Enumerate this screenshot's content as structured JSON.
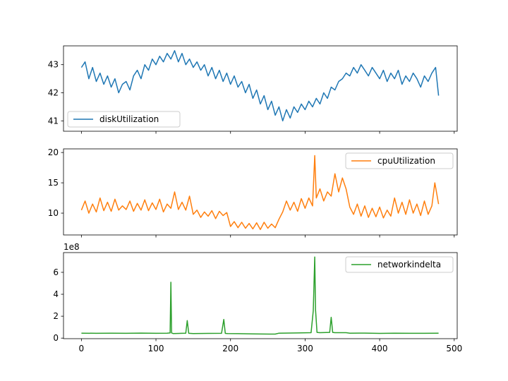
{
  "chart_data": [
    {
      "type": "line",
      "ylim": [
        40.63,
        43.67
      ],
      "xlim": [
        -24,
        504
      ],
      "yticks": [
        41,
        42,
        43
      ],
      "xticks": [
        0,
        100,
        200,
        300,
        400,
        500
      ],
      "show_xticklabels": false,
      "legend_loc": "lower-left",
      "series": [
        {
          "name": "diskUtilization",
          "color": "#1f77b4",
          "x": [
            0,
            5,
            10,
            15,
            20,
            25,
            30,
            35,
            40,
            45,
            50,
            55,
            60,
            65,
            70,
            75,
            80,
            85,
            90,
            95,
            100,
            105,
            110,
            115,
            120,
            125,
            130,
            135,
            140,
            145,
            150,
            155,
            160,
            165,
            170,
            175,
            180,
            185,
            190,
            195,
            200,
            205,
            210,
            215,
            220,
            225,
            230,
            235,
            240,
            245,
            250,
            255,
            260,
            265,
            270,
            275,
            280,
            285,
            290,
            295,
            300,
            305,
            310,
            315,
            320,
            325,
            330,
            335,
            340,
            345,
            350,
            355,
            360,
            365,
            370,
            375,
            380,
            385,
            390,
            395,
            400,
            405,
            410,
            415,
            420,
            425,
            430,
            435,
            440,
            445,
            450,
            455,
            460,
            465,
            470,
            475,
            479
          ],
          "y": [
            42.9,
            43.1,
            42.5,
            42.9,
            42.4,
            42.7,
            42.3,
            42.6,
            42.2,
            42.5,
            42.0,
            42.3,
            42.4,
            42.1,
            42.6,
            42.8,
            42.5,
            43.0,
            42.8,
            43.2,
            43.0,
            43.3,
            43.1,
            43.4,
            43.2,
            43.5,
            43.1,
            43.4,
            43.0,
            43.2,
            42.9,
            43.1,
            42.8,
            43.0,
            42.6,
            42.9,
            42.5,
            42.8,
            42.4,
            42.7,
            42.3,
            42.6,
            42.2,
            42.4,
            42.0,
            42.3,
            41.8,
            42.1,
            41.6,
            41.9,
            41.4,
            41.7,
            41.2,
            41.5,
            41.0,
            41.4,
            41.1,
            41.5,
            41.3,
            41.6,
            41.4,
            41.7,
            41.5,
            41.8,
            41.6,
            42.0,
            41.8,
            42.2,
            42.1,
            42.4,
            42.5,
            42.7,
            42.6,
            42.9,
            42.7,
            43.0,
            42.8,
            42.6,
            42.9,
            42.7,
            42.5,
            42.8,
            42.4,
            42.7,
            42.5,
            42.8,
            42.3,
            42.6,
            42.4,
            42.7,
            42.5,
            42.2,
            42.6,
            42.4,
            42.7,
            42.9,
            41.9
          ]
        }
      ]
    },
    {
      "type": "line",
      "ylim": [
        6.4,
        20.6
      ],
      "xlim": [
        -24,
        504
      ],
      "yticks": [
        10,
        15,
        20
      ],
      "xticks": [
        0,
        100,
        200,
        300,
        400,
        500
      ],
      "show_xticklabels": false,
      "legend_loc": "upper-right",
      "series": [
        {
          "name": "cpuUtilization",
          "color": "#ff7f0e",
          "x": [
            0,
            5,
            10,
            15,
            20,
            25,
            30,
            35,
            40,
            45,
            50,
            55,
            60,
            65,
            70,
            75,
            80,
            85,
            90,
            95,
            100,
            105,
            110,
            115,
            120,
            125,
            130,
            135,
            140,
            145,
            150,
            155,
            160,
            165,
            170,
            175,
            180,
            185,
            190,
            195,
            200,
            205,
            210,
            215,
            220,
            225,
            230,
            235,
            240,
            245,
            250,
            255,
            260,
            265,
            270,
            275,
            280,
            285,
            290,
            295,
            300,
            305,
            310,
            313,
            315,
            320,
            325,
            330,
            335,
            340,
            345,
            350,
            355,
            360,
            365,
            370,
            375,
            380,
            385,
            390,
            395,
            400,
            405,
            410,
            415,
            420,
            425,
            430,
            435,
            440,
            445,
            450,
            455,
            460,
            465,
            470,
            474,
            479
          ],
          "y": [
            10.5,
            12.0,
            10.0,
            11.5,
            10.2,
            12.5,
            10.4,
            11.8,
            10.3,
            12.3,
            10.5,
            11.2,
            10.6,
            12.0,
            10.3,
            11.6,
            10.5,
            12.2,
            10.4,
            11.7,
            10.6,
            12.3,
            10.2,
            11.5,
            10.8,
            13.5,
            10.6,
            11.8,
            10.5,
            12.8,
            9.8,
            10.5,
            9.3,
            10.2,
            9.5,
            10.4,
            9.1,
            10.3,
            9.6,
            10.1,
            7.8,
            8.6,
            7.6,
            8.5,
            7.5,
            8.3,
            7.4,
            8.4,
            7.3,
            8.5,
            7.5,
            8.2,
            7.6,
            9.0,
            10.2,
            12.0,
            10.5,
            11.8,
            10.3,
            12.4,
            10.8,
            12.5,
            11.2,
            19.5,
            12.5,
            14.0,
            12.0,
            13.5,
            12.8,
            16.5,
            13.5,
            15.8,
            14.0,
            11.0,
            9.8,
            11.5,
            9.5,
            11.2,
            9.3,
            10.8,
            9.4,
            11.0,
            9.2,
            10.5,
            9.5,
            12.5,
            10.0,
            11.8,
            9.8,
            12.2,
            10.0,
            11.5,
            9.6,
            12.0,
            9.8,
            11.2,
            15.0,
            11.5
          ]
        }
      ]
    },
    {
      "type": "line",
      "ylim": [
        -5,
        780
      ],
      "xlim": [
        -24,
        504
      ],
      "yticks": [
        0,
        2,
        4,
        6
      ],
      "ytick_scale": 100,
      "offset_label": "1e8",
      "xticks": [
        0,
        100,
        200,
        300,
        400,
        500
      ],
      "xticklabels": [
        "0",
        "100",
        "200",
        "300",
        "400",
        "500"
      ],
      "show_xticklabels": true,
      "legend_loc": "upper-right",
      "series": [
        {
          "name": "networkindelta",
          "color": "#2ca02c",
          "x": [
            0,
            20,
            40,
            60,
            80,
            100,
            115,
            119,
            120,
            121,
            123,
            135,
            140,
            142,
            144,
            150,
            170,
            188,
            191,
            193,
            196,
            210,
            230,
            260,
            265,
            290,
            308,
            311,
            313,
            314,
            316,
            320,
            333,
            335,
            337,
            340,
            355,
            360,
            380,
            400,
            420,
            440,
            460,
            479
          ],
          "y": [
            45,
            44,
            45,
            44,
            46,
            44,
            45,
            47,
            510,
            47,
            42,
            44,
            45,
            160,
            44,
            42,
            43,
            44,
            170,
            43,
            42,
            41,
            38,
            37,
            45,
            47,
            50,
            250,
            740,
            260,
            52,
            50,
            52,
            190,
            52,
            50,
            50,
            45,
            46,
            43,
            45,
            44,
            44,
            45
          ]
        }
      ]
    }
  ]
}
